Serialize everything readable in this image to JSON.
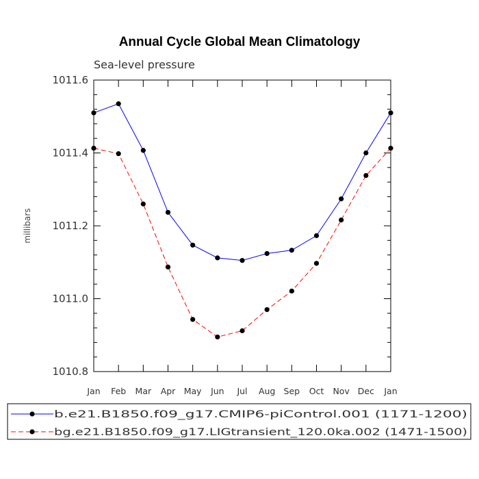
{
  "chart_data": {
    "type": "line",
    "title": "Annual Cycle Global Mean Climatology",
    "subtitle": "Sea-level pressure",
    "xlabel": "",
    "ylabel": "millibars",
    "categories": [
      "Jan",
      "Feb",
      "Mar",
      "Apr",
      "May",
      "Jun",
      "Jul",
      "Aug",
      "Sep",
      "Oct",
      "Nov",
      "Dec",
      "Jan"
    ],
    "ylim": [
      1010.8,
      1011.6
    ],
    "yticks": [
      "1010.8",
      "1011.0",
      "1011.2",
      "1011.4",
      "1011.6"
    ],
    "ytick_values": [
      1010.8,
      1011.0,
      1011.2,
      1011.4,
      1011.6
    ],
    "series": [
      {
        "name": "b.e21.B1850.f09_g17.CMIP6-piControl.001 (1171-1200)",
        "color": "#0000ff",
        "dash": "solid",
        "values": [
          1011.51,
          1011.535,
          1011.407,
          1011.237,
          1011.147,
          1011.112,
          1011.105,
          1011.124,
          1011.133,
          1011.173,
          1011.274,
          1011.4,
          1011.51
        ]
      },
      {
        "name": "bg.e21.B1850.f09_g17.LIGtransient_120.0ka.002 (1471-1500)",
        "color": "#ff0000",
        "dash": "dashed",
        "values": [
          1011.413,
          1011.398,
          1011.26,
          1011.087,
          1010.943,
          1010.895,
          1010.912,
          1010.97,
          1011.021,
          1011.097,
          1011.216,
          1011.338,
          1011.413
        ]
      }
    ],
    "legend_position": "bottom",
    "grid": false
  }
}
